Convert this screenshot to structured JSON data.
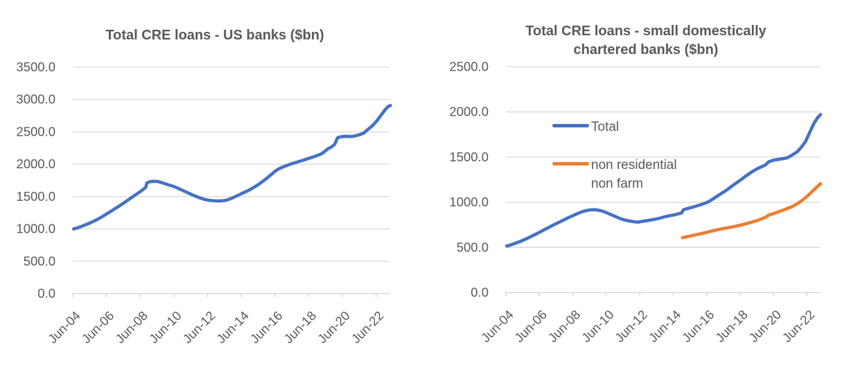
{
  "styles": {
    "background": "#ffffff",
    "title_color": "#595959",
    "axis_label_color": "#595959",
    "gridline_color": "#D9D9D9",
    "axis_line_color": "#D0D0D0",
    "series_blue": "#4472C4",
    "series_orange": "#ED7D31"
  },
  "chart_data": [
    {
      "type": "line",
      "title": "Total CRE loans - US banks ($bn)",
      "xlabel": "",
      "ylabel": "",
      "ylim": [
        0,
        3500
      ],
      "y_step": 500,
      "y_tick_format": "one_decimal",
      "grid": true,
      "legend_position": "none",
      "x_tick_labels": [
        "Jun-04",
        "Jun-06",
        "Jun-08",
        "Jun-10",
        "Jun-12",
        "Jun-14",
        "Jun-16",
        "Jun-18",
        "Jun-20",
        "Jun-22"
      ],
      "x_range_years": [
        2004.45,
        2023.3
      ],
      "series": [
        {
          "name": "Total CRE loans - US banks",
          "color": "#4472C4",
          "points": [
            [
              2004.5,
              1000
            ],
            [
              2004.75,
              1018
            ],
            [
              2005,
              1042
            ],
            [
              2005.25,
              1068
            ],
            [
              2005.5,
              1096
            ],
            [
              2005.75,
              1126
            ],
            [
              2006,
              1160
            ],
            [
              2006.25,
              1198
            ],
            [
              2006.5,
              1238
            ],
            [
              2006.75,
              1278
            ],
            [
              2007,
              1320
            ],
            [
              2007.25,
              1362
            ],
            [
              2007.5,
              1405
            ],
            [
              2007.75,
              1450
            ],
            [
              2008,
              1495
            ],
            [
              2008.25,
              1540
            ],
            [
              2008.5,
              1585
            ],
            [
              2008.7,
              1625
            ],
            [
              2008.78,
              1642
            ],
            [
              2008.85,
              1712
            ],
            [
              2009,
              1728
            ],
            [
              2009.2,
              1736
            ],
            [
              2009.45,
              1735
            ],
            [
              2009.7,
              1718
            ],
            [
              2010,
              1692
            ],
            [
              2010.25,
              1672
            ],
            [
              2010.5,
              1650
            ],
            [
              2010.75,
              1622
            ],
            [
              2011,
              1592
            ],
            [
              2011.25,
              1562
            ],
            [
              2011.5,
              1532
            ],
            [
              2011.75,
              1505
            ],
            [
              2012,
              1478
            ],
            [
              2012.25,
              1458
            ],
            [
              2012.5,
              1444
            ],
            [
              2012.75,
              1436
            ],
            [
              2013,
              1432
            ],
            [
              2013.25,
              1432
            ],
            [
              2013.5,
              1440
            ],
            [
              2013.75,
              1460
            ],
            [
              2014,
              1488
            ],
            [
              2014.25,
              1518
            ],
            [
              2014.5,
              1550
            ],
            [
              2014.75,
              1580
            ],
            [
              2015,
              1612
            ],
            [
              2015.25,
              1650
            ],
            [
              2015.5,
              1692
            ],
            [
              2015.75,
              1740
            ],
            [
              2016,
              1790
            ],
            [
              2016.25,
              1845
            ],
            [
              2016.5,
              1900
            ],
            [
              2016.75,
              1938
            ],
            [
              2017,
              1965
            ],
            [
              2017.25,
              1990
            ],
            [
              2017.5,
              2012
            ],
            [
              2017.75,
              2032
            ],
            [
              2018,
              2052
            ],
            [
              2018.25,
              2072
            ],
            [
              2018.5,
              2095
            ],
            [
              2018.75,
              2115
            ],
            [
              2019,
              2140
            ],
            [
              2019.25,
              2165
            ],
            [
              2019.6,
              2240
            ],
            [
              2019.8,
              2265
            ],
            [
              2020,
              2310
            ],
            [
              2020.16,
              2408
            ],
            [
              2020.4,
              2428
            ],
            [
              2020.7,
              2432
            ],
            [
              2021,
              2428
            ],
            [
              2021.2,
              2438
            ],
            [
              2021.45,
              2455
            ],
            [
              2021.7,
              2478
            ],
            [
              2022,
              2545
            ],
            [
              2022.25,
              2600
            ],
            [
              2022.5,
              2672
            ],
            [
              2022.75,
              2760
            ],
            [
              2023,
              2845
            ],
            [
              2023.15,
              2888
            ],
            [
              2023.3,
              2908
            ]
          ]
        }
      ]
    },
    {
      "type": "line",
      "title": "Total CRE loans - small domestically chartered banks ($bn)",
      "xlabel": "",
      "ylabel": "",
      "ylim": [
        0,
        2500
      ],
      "y_step": 500,
      "y_tick_format": "one_decimal",
      "grid": true,
      "legend_position": "inside-upper-left",
      "x_tick_labels": [
        "Jun-04",
        "Jun-06",
        "Jun-08",
        "Jun-10",
        "Jun-12",
        "Jun-14",
        "Jun-16",
        "Jun-18",
        "Jun-20",
        "Jun-22"
      ],
      "x_range_years": [
        2004.45,
        2023.3
      ],
      "series": [
        {
          "name": "Total",
          "color": "#4472C4",
          "points": [
            [
              2004.5,
              515
            ],
            [
              2004.75,
              528
            ],
            [
              2005,
              545
            ],
            [
              2005.25,
              562
            ],
            [
              2005.5,
              582
            ],
            [
              2005.75,
              602
            ],
            [
              2006,
              625
            ],
            [
              2006.25,
              648
            ],
            [
              2006.5,
              672
            ],
            [
              2006.75,
              696
            ],
            [
              2007,
              720
            ],
            [
              2007.25,
              745
            ],
            [
              2007.5,
              768
            ],
            [
              2007.75,
              790
            ],
            [
              2008,
              812
            ],
            [
              2008.25,
              835
            ],
            [
              2008.5,
              856
            ],
            [
              2008.75,
              876
            ],
            [
              2009,
              895
            ],
            [
              2009.25,
              908
            ],
            [
              2009.5,
              916
            ],
            [
              2009.75,
              918
            ],
            [
              2010,
              912
            ],
            [
              2010.25,
              900
            ],
            [
              2010.5,
              882
            ],
            [
              2010.75,
              862
            ],
            [
              2011,
              842
            ],
            [
              2011.25,
              822
            ],
            [
              2011.5,
              806
            ],
            [
              2011.75,
              795
            ],
            [
              2012,
              787
            ],
            [
              2012.2,
              782
            ],
            [
              2012.35,
              779
            ],
            [
              2012.5,
              786
            ],
            [
              2012.75,
              792
            ],
            [
              2013,
              800
            ],
            [
              2013.25,
              808
            ],
            [
              2013.5,
              818
            ],
            [
              2013.75,
              830
            ],
            [
              2014,
              842
            ],
            [
              2014.25,
              852
            ],
            [
              2014.5,
              860
            ],
            [
              2014.75,
              872
            ],
            [
              2014.95,
              882
            ],
            [
              2015.05,
              916
            ],
            [
              2015.25,
              928
            ],
            [
              2015.5,
              940
            ],
            [
              2015.75,
              953
            ],
            [
              2016,
              968
            ],
            [
              2016.25,
              984
            ],
            [
              2016.5,
              1000
            ],
            [
              2016.75,
              1028
            ],
            [
              2017,
              1058
            ],
            [
              2017.25,
              1088
            ],
            [
              2017.5,
              1118
            ],
            [
              2017.75,
              1150
            ],
            [
              2018,
              1185
            ],
            [
              2018.25,
              1218
            ],
            [
              2018.5,
              1250
            ],
            [
              2018.75,
              1285
            ],
            [
              2019,
              1318
            ],
            [
              2019.25,
              1348
            ],
            [
              2019.5,
              1375
            ],
            [
              2019.75,
              1395
            ],
            [
              2019.95,
              1412
            ],
            [
              2020.15,
              1448
            ],
            [
              2020.4,
              1465
            ],
            [
              2020.7,
              1474
            ],
            [
              2021,
              1482
            ],
            [
              2021.3,
              1495
            ],
            [
              2021.6,
              1528
            ],
            [
              2021.85,
              1558
            ],
            [
              2022.1,
              1608
            ],
            [
              2022.35,
              1672
            ],
            [
              2022.6,
              1772
            ],
            [
              2022.85,
              1872
            ],
            [
              2023.05,
              1930
            ],
            [
              2023.25,
              1972
            ]
          ]
        },
        {
          "name": "non residential non farm",
          "color": "#ED7D31",
          "points": [
            [
              2015,
              608
            ],
            [
              2015.25,
              618
            ],
            [
              2015.5,
              628
            ],
            [
              2015.75,
              638
            ],
            [
              2016,
              648
            ],
            [
              2016.25,
              659
            ],
            [
              2016.5,
              670
            ],
            [
              2016.75,
              681
            ],
            [
              2017,
              692
            ],
            [
              2017.25,
              702
            ],
            [
              2017.5,
              712
            ],
            [
              2017.75,
              720
            ],
            [
              2018,
              728
            ],
            [
              2018.25,
              738
            ],
            [
              2018.5,
              748
            ],
            [
              2018.75,
              760
            ],
            [
              2019,
              772
            ],
            [
              2019.25,
              786
            ],
            [
              2019.5,
              800
            ],
            [
              2019.75,
              818
            ],
            [
              2020,
              838
            ],
            [
              2020.15,
              858
            ],
            [
              2020.4,
              872
            ],
            [
              2020.7,
              892
            ],
            [
              2021,
              912
            ],
            [
              2021.25,
              930
            ],
            [
              2021.5,
              948
            ],
            [
              2021.75,
              972
            ],
            [
              2022,
              1000
            ],
            [
              2022.2,
              1028
            ],
            [
              2022.4,
              1058
            ],
            [
              2022.6,
              1092
            ],
            [
              2022.8,
              1128
            ],
            [
              2023,
              1165
            ],
            [
              2023.25,
              1205
            ]
          ]
        }
      ]
    }
  ]
}
